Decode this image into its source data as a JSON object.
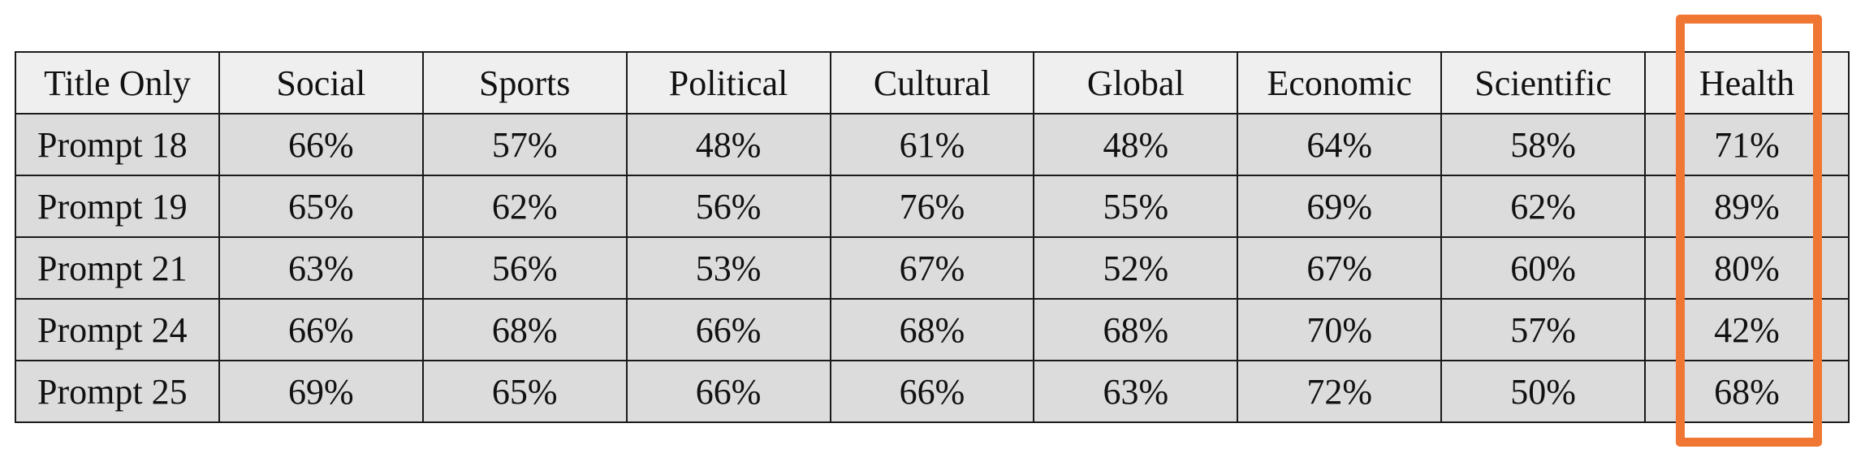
{
  "table": {
    "headers": [
      "Title Only",
      "Social",
      "Sports",
      "Political",
      "Cultural",
      "Global",
      "Economic",
      "Scientific",
      "Health"
    ],
    "rows": [
      [
        "Prompt 18",
        "66%",
        "57%",
        "48%",
        "61%",
        "48%",
        "64%",
        "58%",
        "71%"
      ],
      [
        "Prompt 19",
        "65%",
        "62%",
        "56%",
        "76%",
        "55%",
        "69%",
        "62%",
        "89%"
      ],
      [
        "Prompt 21",
        "63%",
        "56%",
        "53%",
        "67%",
        "52%",
        "67%",
        "60%",
        "80%"
      ],
      [
        "Prompt 24",
        "66%",
        "68%",
        "66%",
        "68%",
        "68%",
        "70%",
        "57%",
        "42%"
      ],
      [
        "Prompt 25",
        "69%",
        "65%",
        "66%",
        "66%",
        "63%",
        "72%",
        "50%",
        "68%"
      ]
    ]
  },
  "highlight": {
    "column": "Health",
    "color": "#ef7633"
  },
  "colors": {
    "header_background": "#efefef",
    "body_background": "#dcdcdc",
    "border": "#1a1a1a"
  }
}
